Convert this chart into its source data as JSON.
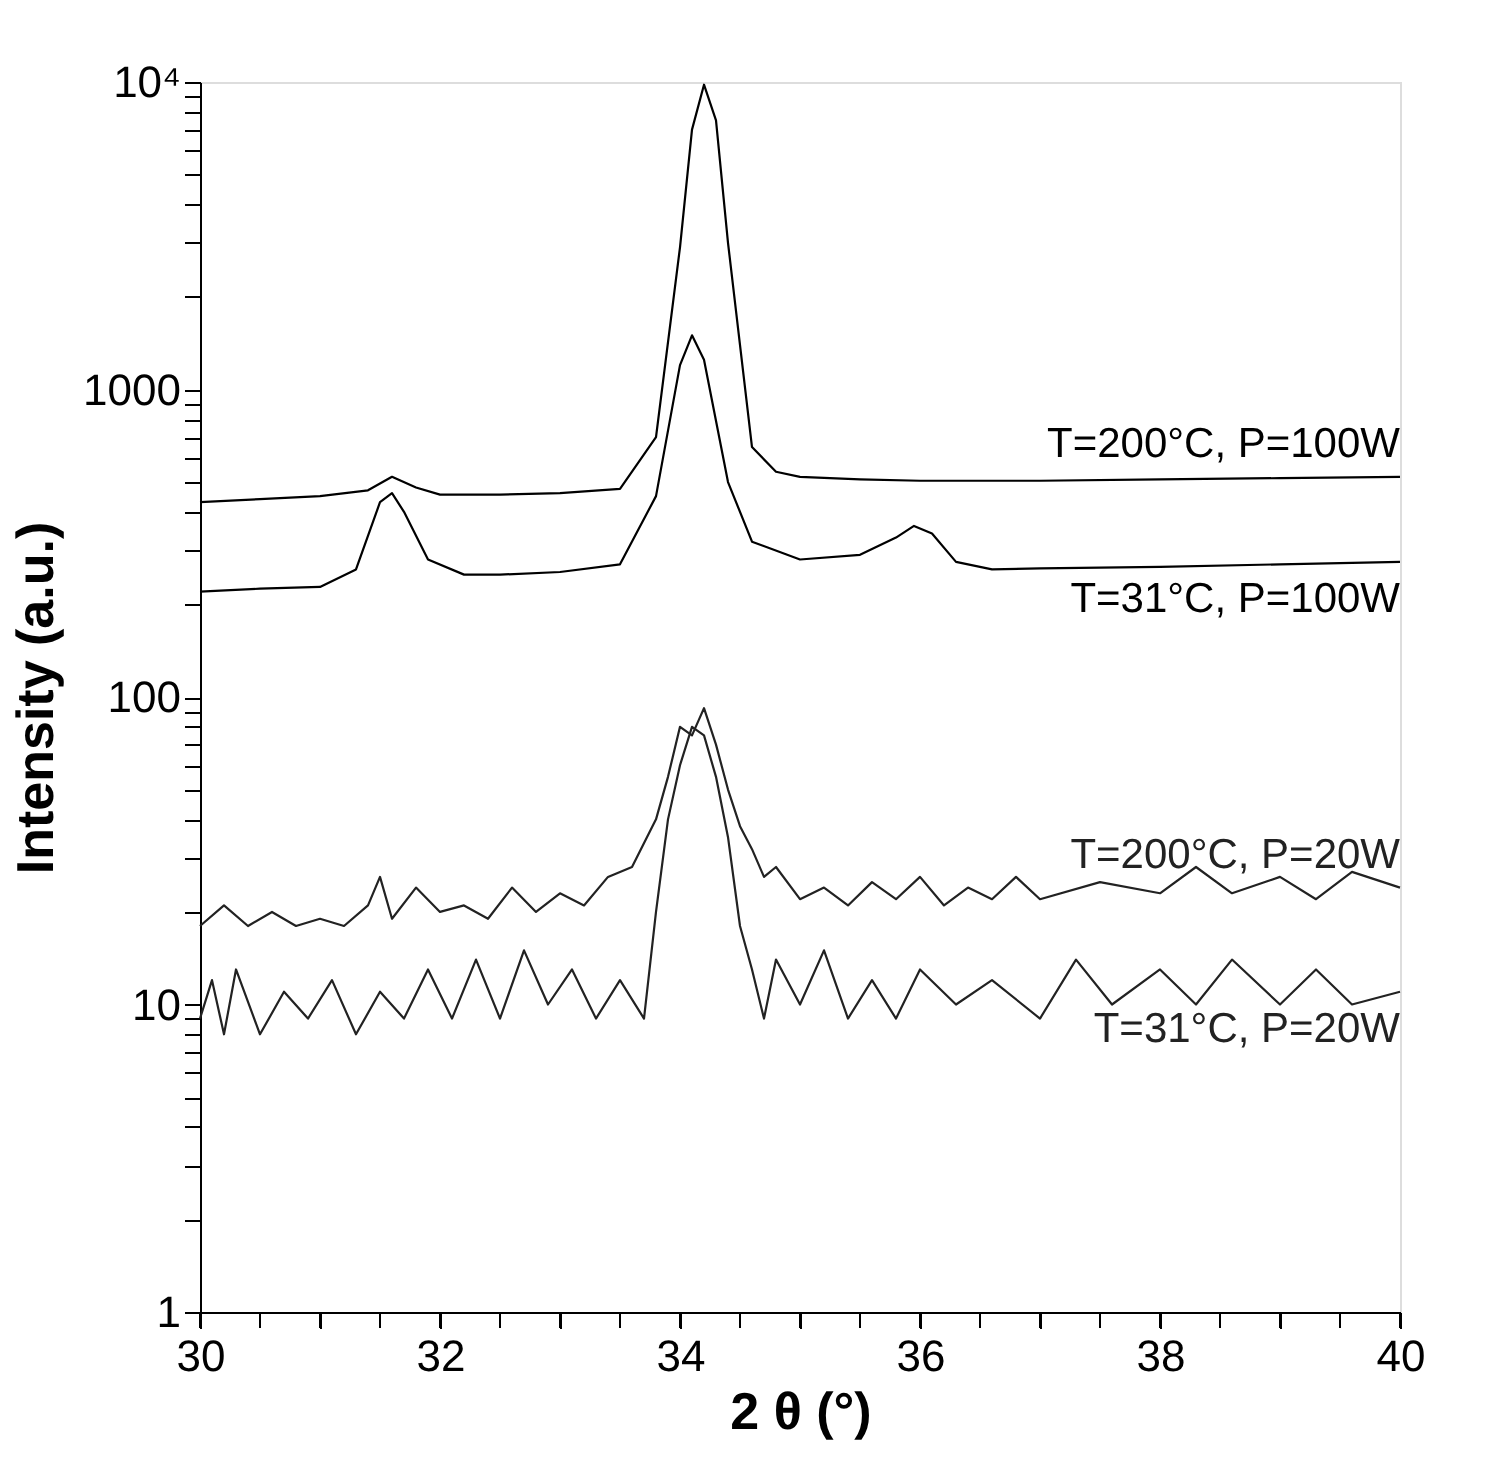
{
  "chart_data": {
    "type": "line",
    "xlabel": "2 θ (°)",
    "ylabel": "Intensity (a.u.)",
    "xlim": [
      30,
      40
    ],
    "xticks": [
      30,
      {
        "value": 30.5,
        "label": null
      },
      {
        "value": 31,
        "label": null
      },
      {
        "value": 31.5,
        "label": null
      },
      32,
      {
        "value": 32.5,
        "label": null
      },
      {
        "value": 33,
        "label": null
      },
      {
        "value": 33.5,
        "label": null
      },
      34,
      {
        "value": 34.5,
        "label": null
      },
      {
        "value": 35,
        "label": null
      },
      {
        "value": 35.5,
        "label": null
      },
      36,
      {
        "value": 36.5,
        "label": null
      },
      {
        "value": 37,
        "label": null
      },
      {
        "value": 37.5,
        "label": null
      },
      38,
      {
        "value": 38.5,
        "label": null
      },
      {
        "value": 39,
        "label": null
      },
      {
        "value": 39.5,
        "label": null
      },
      40
    ],
    "ylim": [
      1,
      10000
    ],
    "log": true,
    "yticks": [
      1,
      {
        "value": 2,
        "label": null
      },
      {
        "value": 3,
        "label": null
      },
      {
        "value": 4,
        "label": null
      },
      {
        "value": 5,
        "label": null
      },
      {
        "value": 6,
        "label": null
      },
      {
        "value": 7,
        "label": null
      },
      {
        "value": 8,
        "label": null
      },
      {
        "value": 9,
        "label": null
      },
      10,
      {
        "value": 20,
        "label": null
      },
      {
        "value": 30,
        "label": null
      },
      {
        "value": 40,
        "label": null
      },
      {
        "value": 50,
        "label": null
      },
      {
        "value": 60,
        "label": null
      },
      {
        "value": 70,
        "label": null
      },
      {
        "value": 80,
        "label": null
      },
      {
        "value": 90,
        "label": null
      },
      100,
      {
        "value": 200,
        "label": null
      },
      {
        "value": 300,
        "label": null
      },
      {
        "value": 400,
        "label": null
      },
      {
        "value": 500,
        "label": null
      },
      {
        "value": 600,
        "label": null
      },
      {
        "value": 700,
        "label": null
      },
      {
        "value": 800,
        "label": null
      },
      {
        "value": 900,
        "label": null
      },
      1000,
      {
        "value": 2000,
        "label": null
      },
      {
        "value": 3000,
        "label": null
      },
      {
        "value": 4000,
        "label": null
      },
      {
        "value": 5000,
        "label": null
      },
      {
        "value": 6000,
        "label": null
      },
      {
        "value": 7000,
        "label": null
      },
      {
        "value": 8000,
        "label": null
      },
      {
        "value": 9000,
        "label": null
      },
      {
        "value": 10000,
        "label": "10⁴"
      }
    ],
    "grid": false,
    "legend": false,
    "marker": "none",
    "line_style": "solid",
    "series": [
      {
        "name": "T=200°C, P=100W",
        "color": "#000000",
        "x": [
          30,
          30.5,
          31,
          31.4,
          31.6,
          31.8,
          32,
          32.5,
          33,
          33.5,
          33.8,
          34.0,
          34.1,
          34.2,
          34.3,
          34.4,
          34.6,
          34.8,
          35,
          35.5,
          36,
          37,
          38,
          39,
          40
        ],
        "values": [
          430,
          440,
          450,
          470,
          520,
          480,
          455,
          455,
          460,
          475,
          700,
          2900,
          7000,
          9800,
          7500,
          3000,
          650,
          540,
          520,
          510,
          505,
          505,
          510,
          515,
          520
        ]
      },
      {
        "name": "T=31°C, P=100W",
        "color": "#000000",
        "x": [
          30,
          30.5,
          31,
          31.3,
          31.5,
          31.6,
          31.7,
          31.9,
          32.2,
          32.5,
          33,
          33.5,
          33.8,
          34.0,
          34.1,
          34.2,
          34.4,
          34.6,
          35,
          35.5,
          35.8,
          35.95,
          36.1,
          36.3,
          36.6,
          37,
          38,
          39,
          40
        ],
        "values": [
          220,
          225,
          228,
          260,
          430,
          460,
          400,
          280,
          250,
          250,
          255,
          270,
          450,
          1200,
          1500,
          1250,
          500,
          320,
          280,
          290,
          330,
          360,
          340,
          275,
          260,
          262,
          265,
          270,
          275
        ]
      },
      {
        "name": "T=200°C, P=20W",
        "color": "#222222",
        "x": [
          30,
          30.2,
          30.4,
          30.6,
          30.8,
          31,
          31.2,
          31.4,
          31.5,
          31.6,
          31.8,
          32,
          32.2,
          32.4,
          32.6,
          32.8,
          33,
          33.2,
          33.4,
          33.6,
          33.8,
          33.9,
          34.0,
          34.1,
          34.2,
          34.3,
          34.4,
          34.5,
          34.6,
          34.7,
          34.8,
          35,
          35.2,
          35.4,
          35.6,
          35.8,
          36,
          36.2,
          36.4,
          36.6,
          36.8,
          37,
          37.5,
          38,
          38.3,
          38.6,
          39,
          39.3,
          39.6,
          40
        ],
        "values": [
          18,
          21,
          18,
          20,
          18,
          19,
          18,
          21,
          26,
          19,
          24,
          20,
          21,
          19,
          24,
          20,
          23,
          21,
          26,
          28,
          40,
          55,
          80,
          75,
          92,
          70,
          50,
          38,
          32,
          26,
          28,
          22,
          24,
          21,
          25,
          22,
          26,
          21,
          24,
          22,
          26,
          22,
          25,
          23,
          28,
          23,
          26,
          22,
          27,
          24
        ]
      },
      {
        "name": "T=31°C, P=20W",
        "color": "#222222",
        "x": [
          30,
          30.1,
          30.2,
          30.3,
          30.5,
          30.7,
          30.9,
          31.1,
          31.3,
          31.5,
          31.7,
          31.9,
          32.1,
          32.3,
          32.5,
          32.7,
          32.9,
          33.1,
          33.3,
          33.5,
          33.7,
          33.8,
          33.9,
          34.0,
          34.1,
          34.2,
          34.3,
          34.4,
          34.5,
          34.6,
          34.7,
          34.8,
          35,
          35.2,
          35.4,
          35.6,
          35.8,
          36,
          36.3,
          36.6,
          37,
          37.3,
          37.6,
          38,
          38.3,
          38.6,
          39,
          39.3,
          39.6,
          40
        ],
        "values": [
          9,
          12,
          8,
          13,
          8,
          11,
          9,
          12,
          8,
          11,
          9,
          13,
          9,
          14,
          9,
          15,
          10,
          13,
          9,
          12,
          9,
          20,
          40,
          60,
          80,
          75,
          55,
          35,
          18,
          13,
          9,
          14,
          10,
          15,
          9,
          12,
          9,
          13,
          10,
          12,
          9,
          14,
          10,
          13,
          10,
          14,
          10,
          13,
          10,
          11
        ]
      }
    ]
  }
}
